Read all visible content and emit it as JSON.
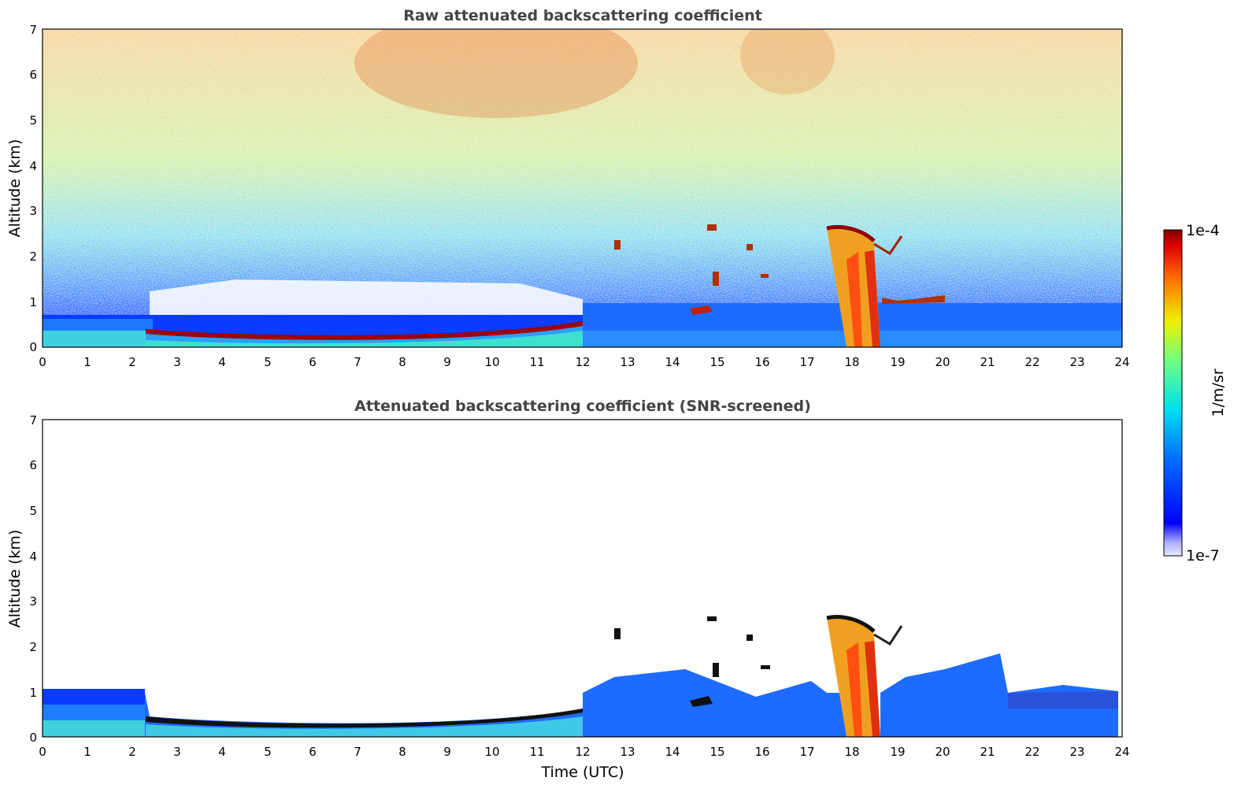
{
  "chart_data": [
    {
      "type": "heatmap",
      "title": "Raw attenuated backscattering coefficient",
      "xlabel": "",
      "ylabel": "Altitude (km)",
      "xlim": [
        0,
        24
      ],
      "ylim": [
        0,
        7
      ],
      "xticks": [
        "0",
        "1",
        "2",
        "3",
        "4",
        "5",
        "6",
        "7",
        "8",
        "9",
        "10",
        "11",
        "12",
        "13",
        "14",
        "15",
        "16",
        "17",
        "18",
        "19",
        "20",
        "21",
        "22",
        "23",
        "24"
      ],
      "yticks": [
        "0",
        "1",
        "2",
        "3",
        "4",
        "5",
        "6",
        "7"
      ],
      "features": [
        {
          "name": "boundary layer top",
          "time_utc": [
            0,
            24
          ],
          "altitude_km": [
            0.55,
            0.6
          ]
        },
        {
          "name": "fog/low cloud layer",
          "time_utc": [
            2.3,
            12.0
          ],
          "altitude_km": [
            0.2,
            0.4
          ]
        },
        {
          "name": "precipitation shaft",
          "time_utc": [
            17.9,
            18.6
          ],
          "altitude_km": [
            0,
            2.6
          ]
        },
        {
          "name": "broken cloud fragments",
          "time_utc": [
            12.6,
            20.3
          ],
          "altitude_km": [
            0.6,
            3.1
          ]
        }
      ]
    },
    {
      "type": "heatmap",
      "title": "Attenuated backscattering coefficient (SNR-screened)",
      "xlabel": "Time (UTC)",
      "ylabel": "Altitude (km)",
      "xlim": [
        0,
        24
      ],
      "ylim": [
        0,
        7
      ],
      "xticks": [
        "0",
        "1",
        "2",
        "3",
        "4",
        "5",
        "6",
        "7",
        "8",
        "9",
        "10",
        "11",
        "12",
        "13",
        "14",
        "15",
        "16",
        "17",
        "18",
        "19",
        "20",
        "21",
        "22",
        "23",
        "24"
      ],
      "yticks": [
        "0",
        "1",
        "2",
        "3",
        "4",
        "5",
        "6",
        "7"
      ]
    }
  ],
  "colorbar": {
    "label": "1/m/sr",
    "min_label": "1e-7",
    "max_label": "1e-4",
    "scale": "log",
    "colormap": "jet"
  }
}
